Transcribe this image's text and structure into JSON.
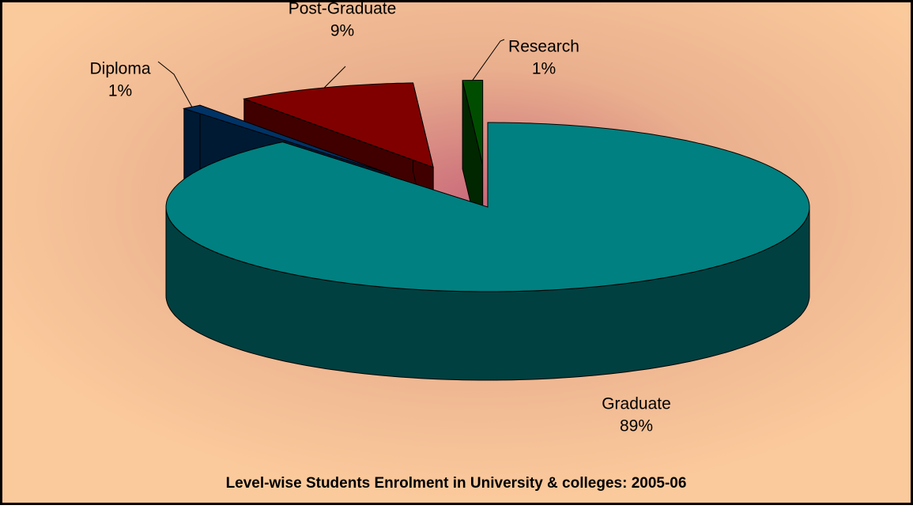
{
  "chart_data": {
    "type": "pie",
    "title": "Level-wise Students Enrolment in University & colleges: 2005-06",
    "categories": [
      "Graduate",
      "Diploma",
      "Post-Graduate",
      "Research"
    ],
    "values": [
      89,
      1,
      9,
      1
    ],
    "value_labels": [
      "89%",
      "1%",
      "9%",
      "1%"
    ],
    "colors": [
      "#008080",
      "#003366",
      "#800000",
      "#004d00"
    ]
  }
}
